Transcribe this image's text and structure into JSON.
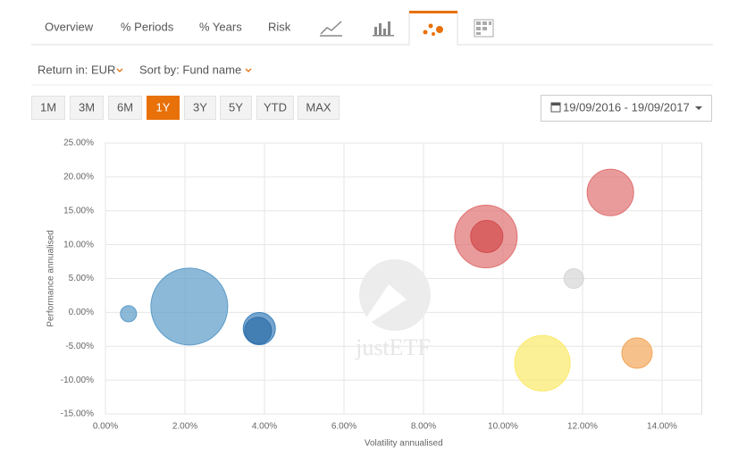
{
  "ui": {
    "tabs": [
      "Overview",
      "% Periods",
      "% Years",
      "Risk"
    ],
    "return_in": "Return in: EUR",
    "sort_by": "Sort by: Fund name",
    "periods": [
      "1M",
      "3M",
      "6M",
      "1Y",
      "3Y",
      "5Y",
      "YTD",
      "MAX"
    ],
    "active_period": 3,
    "date_range": "19/09/2016 - 19/09/2017",
    "watermark": "justETF"
  },
  "chart_data": {
    "type": "bubble",
    "x_label": "Volatility annualised",
    "y_label": "Performance annualised",
    "x": [
      2.11,
      0.58,
      3.87,
      3.84,
      9.57,
      9.59,
      12.7,
      11.78,
      10.99,
      13.37
    ],
    "values": [
      0.86,
      -0.2,
      -2.4,
      -2.7,
      11.2,
      11.2,
      17.7,
      5.0,
      -7.5,
      -6.0
    ],
    "sizes": [
      43,
      9,
      18,
      15,
      35,
      18,
      26,
      11,
      31,
      17
    ],
    "colors": [
      "#5b9bc8",
      "#5b9bc8",
      "#3a7fba",
      "#2f6fa8",
      "#e07070",
      "#d24b4b",
      "#e07070",
      "#d6d6d6",
      "#fbe96a",
      "#f4a65a"
    ],
    "xlim": [
      0,
      15
    ],
    "ylim": [
      -15,
      25
    ],
    "xticks": [
      {
        "value": 0,
        "label": "0.00%"
      },
      {
        "value": 2,
        "label": "2.00%"
      },
      {
        "value": 4,
        "label": "4.00%"
      },
      {
        "value": 6,
        "label": "6.00%"
      },
      {
        "value": 8,
        "label": "8.00%"
      },
      {
        "value": 10,
        "label": "10.00%"
      },
      {
        "value": 12,
        "label": "12.00%"
      },
      {
        "value": 14,
        "label": "14.00%"
      }
    ],
    "yticks": [
      {
        "value": -15,
        "label": "-15.00%"
      },
      {
        "value": -10,
        "label": "-10.00%"
      },
      {
        "value": -5,
        "label": "-5.00%"
      },
      {
        "value": 0,
        "label": "0.00%"
      },
      {
        "value": 5,
        "label": "5.00%"
      },
      {
        "value": 10,
        "label": "10.00%"
      },
      {
        "value": 15,
        "label": "15.00%"
      },
      {
        "value": 20,
        "label": "20.00%"
      },
      {
        "value": 25,
        "label": "25.00%"
      }
    ],
    "grid": true
  }
}
